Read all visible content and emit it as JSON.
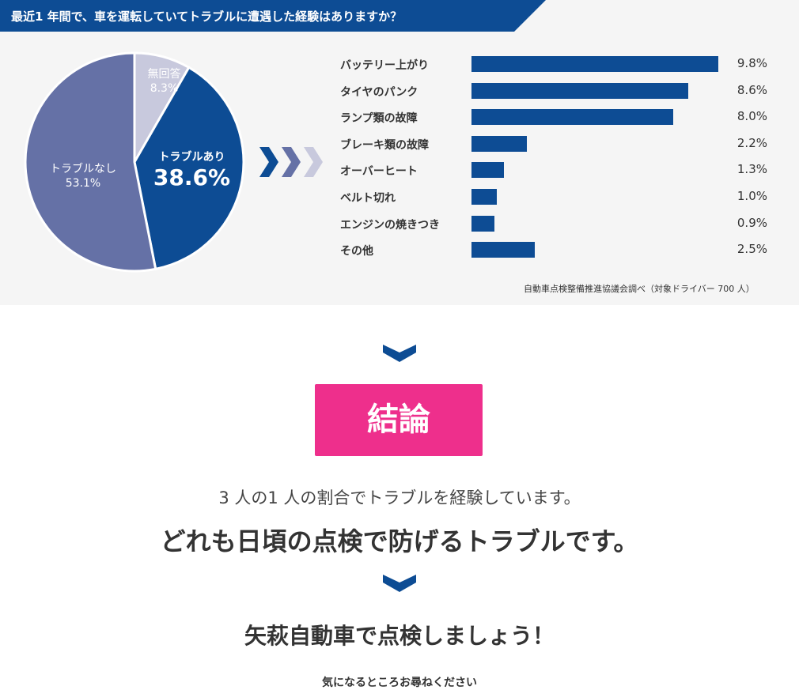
{
  "header": {
    "question": "最近1 年間で、車を運転していてトラブルに遭遇した経験はありますか？"
  },
  "colors": {
    "primary": "#0d4c94",
    "mid": "#6571a6",
    "light": "#c8c9dd",
    "accent": "#ee2f8c"
  },
  "chart_data": [
    {
      "type": "pie",
      "slices": [
        {
          "label": "無回答",
          "value": 8.3,
          "display": "8.3%",
          "color": "#c8c9dd"
        },
        {
          "label": "トラブルあり",
          "value": 38.6,
          "display": "38.6%",
          "color": "#0d4c94"
        },
        {
          "label": "トラブルなし",
          "value": 53.1,
          "display": "53.1%",
          "color": "#6571a6"
        }
      ]
    },
    {
      "type": "bar",
      "orientation": "horizontal",
      "categories": [
        "バッテリー上がり",
        "タイヤのパンク",
        "ランプ類の故障",
        "ブレーキ類の故障",
        "オーバーヒート",
        "ベルト切れ",
        "エンジンの焼きつき",
        "その他"
      ],
      "values": [
        9.8,
        8.6,
        8.0,
        2.2,
        1.3,
        1.0,
        0.9,
        2.5
      ],
      "labels": [
        "9.8%",
        "8.6%",
        "8.0%",
        "2.2%",
        "1.3%",
        "1.0%",
        "0.9%",
        "2.5%"
      ],
      "color": "#0d4c94"
    }
  ],
  "source": "自動車点検整備推進協議会調べ（対象ドライバー 700 人）",
  "conclusion": {
    "badge": "結論",
    "line1": "3 人の1 人の割合でトラブルを経験しています。",
    "line2": "どれも日頃の点検で防げるトラブルです。",
    "line3": "矢萩自動車で点検しましょう！",
    "footer": "気になるところお尋ねください"
  }
}
